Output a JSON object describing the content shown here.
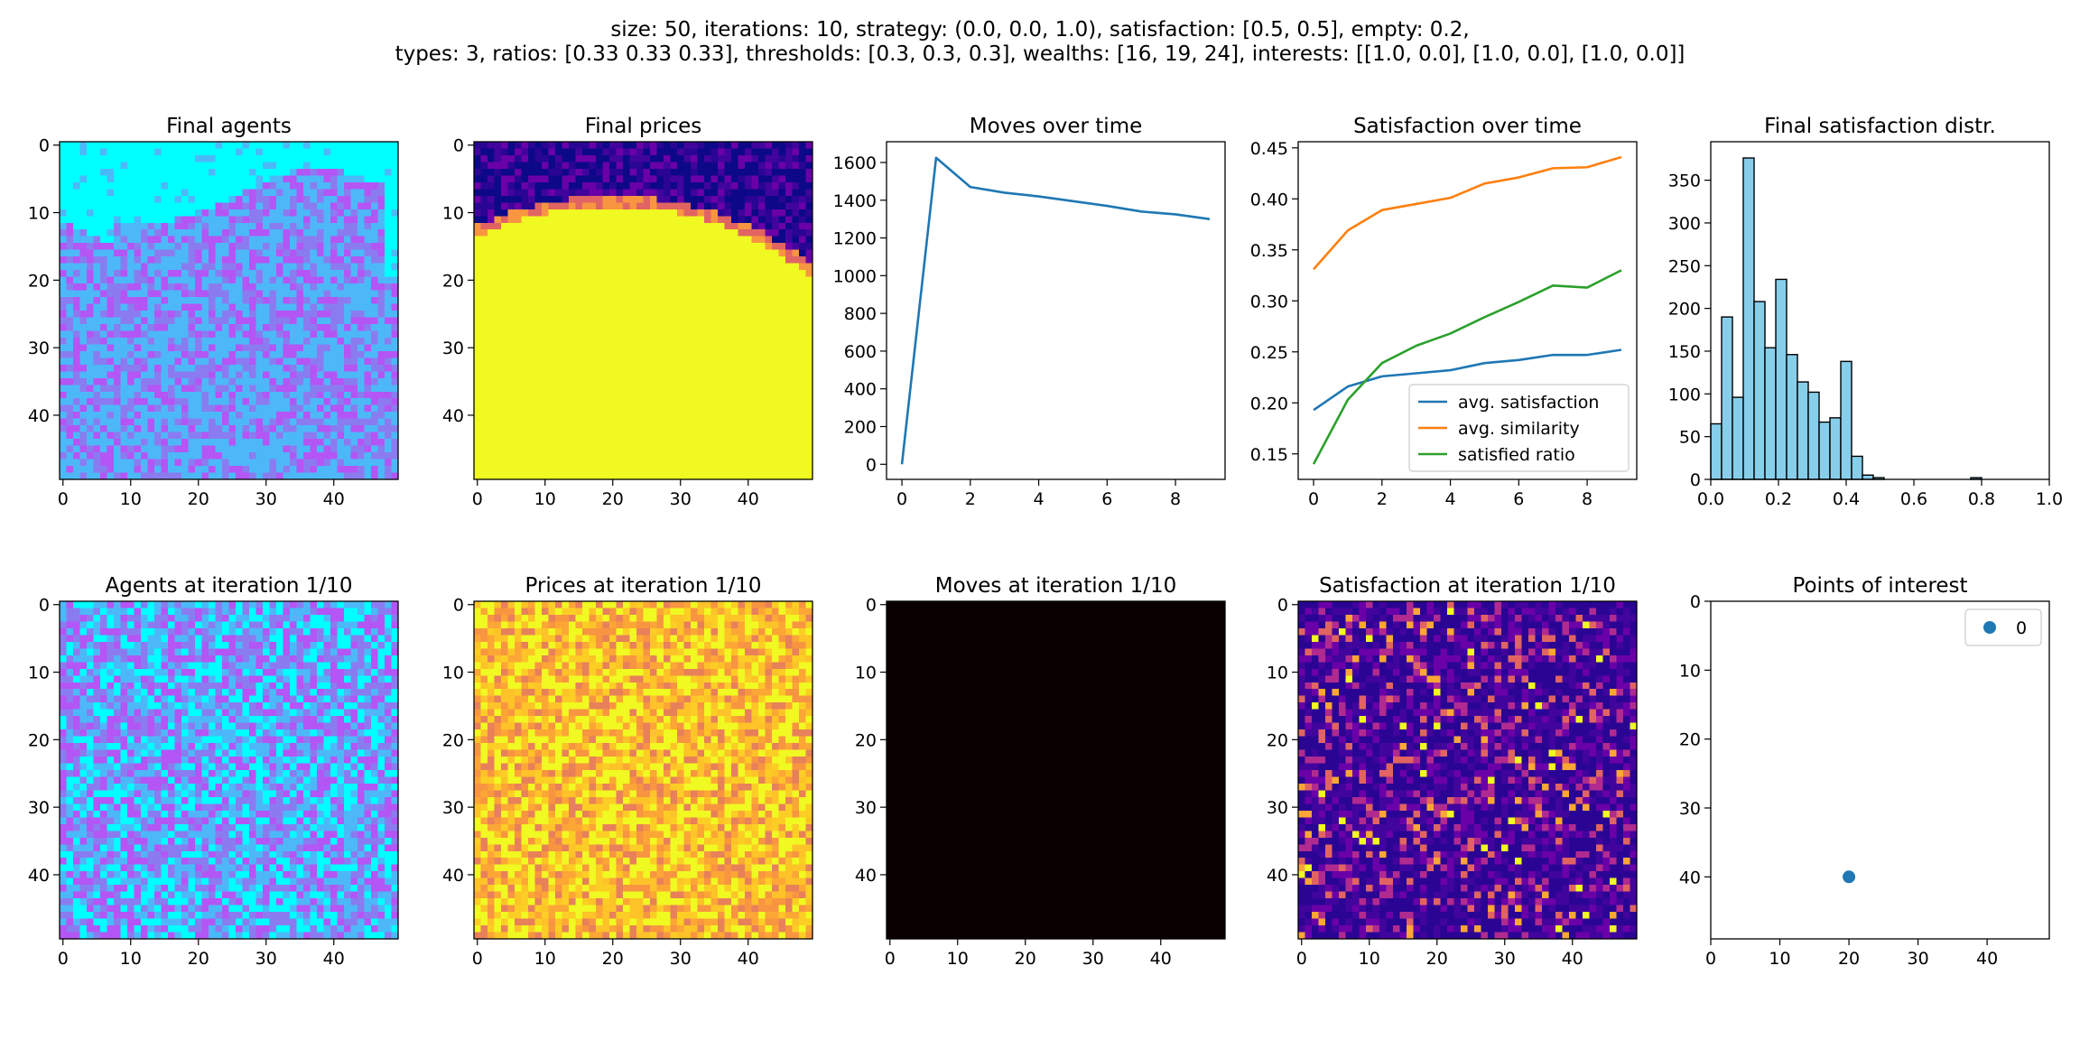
{
  "figure": {
    "suptitle_line1": "size: 50, iterations: 10, strategy: (0.0, 0.0, 1.0), satisfaction: [0.5, 0.5], empty: 0.2,",
    "suptitle_line2": "types: 3, ratios: [0.33 0.33 0.33], thresholds: [0.3, 0.3, 0.3], wealths: [16, 19, 24], interests: [[1.0, 0.0], [1.0, 0.0], [1.0, 0.0]]"
  },
  "colors": {
    "agent_cyan": "#00ffff",
    "agent_blue": "#4db8f8",
    "agent_purple": "#b455f5",
    "agent_violet": "#8a7cf0",
    "price_yellow": "#f0f921",
    "price_navy": "#0d0887",
    "moves_black": "#0a0000",
    "line_blue": "#1f77b4",
    "line_orange": "#ff7f0e",
    "line_green": "#2ca02c",
    "hist_fill": "#87ceeb"
  },
  "chart_data": [
    {
      "id": "final-agents",
      "type": "heatmap",
      "title": "Final agents",
      "grid_size": 50,
      "pattern": "segregated: cyan band top rows 0-8, mixed blue/purple/violet below",
      "xticks": [
        0,
        10,
        20,
        30,
        40
      ],
      "yticks": [
        0,
        10,
        20,
        30,
        40
      ]
    },
    {
      "id": "final-prices",
      "type": "heatmap",
      "title": "Final prices",
      "grid_size": 50,
      "pattern": "yellow disc centered near (20,55) radius ~46; dark navy/purple outside",
      "xticks": [
        0,
        10,
        20,
        30,
        40
      ],
      "yticks": [
        0,
        10,
        20,
        30,
        40
      ]
    },
    {
      "id": "moves-over-time",
      "type": "line",
      "title": "Moves over time",
      "x": [
        0,
        1,
        2,
        3,
        4,
        5,
        6,
        7,
        8,
        9
      ],
      "series": [
        {
          "values": [
            0,
            1625,
            1470,
            1440,
            1420,
            1395,
            1370,
            1340,
            1325,
            1300
          ]
        }
      ],
      "xlim": [
        -0.45,
        9.45
      ],
      "ylim": [
        -80,
        1710
      ],
      "xticks": [
        0,
        2,
        4,
        6,
        8
      ],
      "yticks": [
        0,
        200,
        400,
        600,
        800,
        1000,
        1200,
        1400,
        1600
      ]
    },
    {
      "id": "satisfaction-over-time",
      "type": "line",
      "title": "Satisfaction over time",
      "x": [
        0,
        1,
        2,
        3,
        4,
        5,
        6,
        7,
        8,
        9
      ],
      "series": [
        {
          "name": "avg. satisfaction",
          "values": [
            0.193,
            0.216,
            0.226,
            0.229,
            0.232,
            0.239,
            0.242,
            0.247,
            0.247,
            0.252
          ]
        },
        {
          "name": "avg. similarity",
          "values": [
            0.331,
            0.369,
            0.389,
            0.395,
            0.401,
            0.415,
            0.421,
            0.43,
            0.431,
            0.441
          ]
        },
        {
          "name": "satisfied ratio",
          "values": [
            0.14,
            0.203,
            0.239,
            0.256,
            0.268,
            0.284,
            0.299,
            0.315,
            0.313,
            0.33
          ]
        }
      ],
      "xlim": [
        -0.45,
        9.45
      ],
      "ylim": [
        0.125,
        0.456
      ],
      "xticks": [
        0,
        2,
        4,
        6,
        8
      ],
      "yticks": [
        0.15,
        0.2,
        0.25,
        0.3,
        0.35,
        0.4,
        0.45
      ],
      "legend": "lower-right"
    },
    {
      "id": "final-satisfaction-distr",
      "type": "bar",
      "title": "Final satisfaction distr.",
      "bin_edges": [
        0.0,
        0.032,
        0.064,
        0.096,
        0.128,
        0.16,
        0.192,
        0.224,
        0.256,
        0.288,
        0.32,
        0.352,
        0.384,
        0.416,
        0.448,
        0.48,
        0.512,
        0.544,
        0.576,
        0.608,
        0.64,
        0.672,
        0.704,
        0.736,
        0.768,
        0.8,
        0.832
      ],
      "values": [
        65,
        190,
        96,
        376,
        208,
        154,
        234,
        146,
        114,
        102,
        67,
        72,
        138,
        27,
        5,
        2,
        0,
        0,
        0,
        0,
        0,
        0,
        0,
        0,
        2,
        0
      ],
      "xlim": [
        0.0,
        1.0
      ],
      "ylim": [
        0,
        395
      ],
      "xticks": [
        0.0,
        0.2,
        0.4,
        0.6,
        0.8,
        1.0
      ],
      "yticks": [
        0,
        50,
        100,
        150,
        200,
        250,
        300,
        350
      ]
    },
    {
      "id": "agents-iter1",
      "type": "heatmap",
      "title": "Agents at iteration 1/10",
      "grid_size": 50,
      "pattern": "random mix of cyan, blue, purple",
      "xticks": [
        0,
        10,
        20,
        30,
        40
      ],
      "yticks": [
        0,
        10,
        20,
        30,
        40
      ]
    },
    {
      "id": "prices-iter1",
      "type": "heatmap",
      "title": "Prices at iteration 1/10",
      "grid_size": 50,
      "pattern": "mottled yellow/orange/pink",
      "xticks": [
        0,
        10,
        20,
        30,
        40
      ],
      "yticks": [
        0,
        10,
        20,
        30,
        40
      ]
    },
    {
      "id": "moves-iter1",
      "type": "heatmap",
      "title": "Moves at iteration 1/10",
      "grid_size": 50,
      "pattern": "uniform black",
      "xticks": [
        0,
        10,
        20,
        30,
        40
      ],
      "yticks": [
        0,
        10,
        20,
        30,
        40
      ]
    },
    {
      "id": "satisfaction-iter1",
      "type": "heatmap",
      "title": "Satisfaction at iteration 1/10",
      "grid_size": 50,
      "pattern": "mostly dark purple with scattered orange/yellow cells",
      "xticks": [
        0,
        10,
        20,
        30,
        40
      ],
      "yticks": [
        0,
        10,
        20,
        30,
        40
      ]
    },
    {
      "id": "points-of-interest",
      "type": "scatter",
      "title": "Points of interest",
      "series": [
        {
          "name": "0",
          "x": [
            20
          ],
          "y": [
            40
          ]
        }
      ],
      "xlim": [
        0,
        49
      ],
      "ylim": [
        49,
        0
      ],
      "xticks": [
        0,
        10,
        20,
        30,
        40
      ],
      "yticks": [
        0,
        10,
        20,
        30,
        40
      ],
      "legend": "upper-right"
    }
  ]
}
